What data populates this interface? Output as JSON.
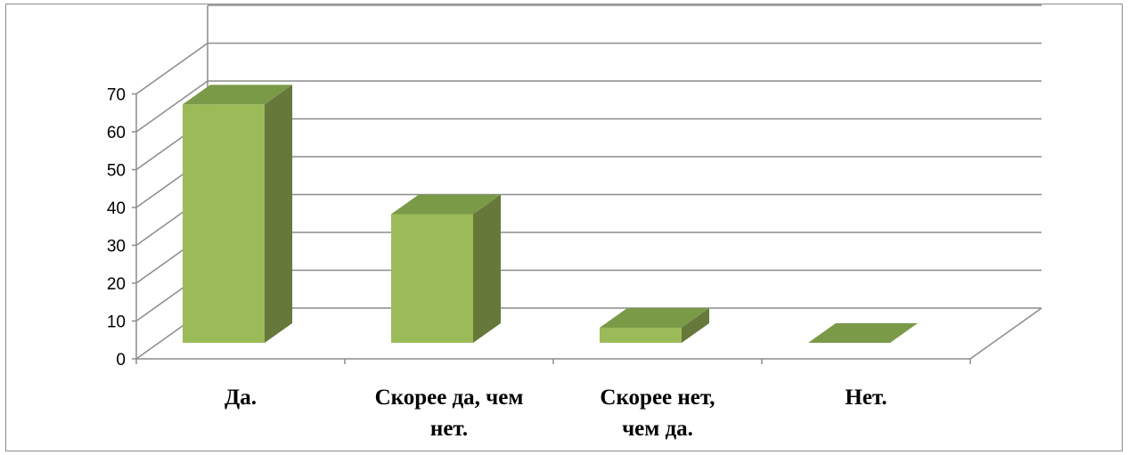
{
  "chart_data": {
    "type": "bar",
    "style": "3d-column",
    "categories": [
      "Да.",
      "Скорее да, чем нет.",
      "Скорее нет, чем да.",
      "Нет."
    ],
    "category_label_lines": [
      [
        "Да."
      ],
      [
        "Скорее да, чем",
        "нет."
      ],
      [
        "Скорее нет,",
        "чем да."
      ],
      [
        "Нет."
      ]
    ],
    "values": [
      63,
      34,
      4,
      0
    ],
    "yticks": [
      "0",
      "10",
      "20",
      "30",
      "40",
      "50",
      "60",
      "70"
    ],
    "ylim": [
      0,
      80
    ],
    "grid": true,
    "legend": "none",
    "title": "",
    "xlabel": "",
    "ylabel": ""
  },
  "colors": {
    "bar_front": "#9bbb59",
    "bar_top": "#7a9a48",
    "bar_side": "#66783a",
    "grid": "#8c8c8c",
    "frame": "#8c8c8c"
  }
}
